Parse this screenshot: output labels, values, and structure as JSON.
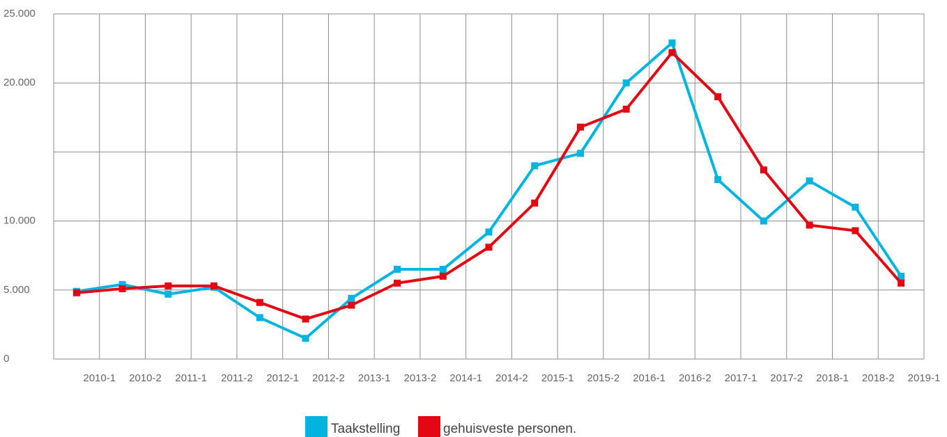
{
  "chart_data": {
    "type": "line",
    "categories": [
      "2010-1",
      "2010-2",
      "2011-1",
      "2011-2",
      "2012-1",
      "2012-2",
      "2013-1",
      "2013-2",
      "2014-1",
      "2014-2",
      "2015-1",
      "2015-2",
      "2016-1",
      "2016-2",
      "2017-1",
      "2017-2",
      "2018-1",
      "2018-2",
      "2019-1"
    ],
    "series": [
      {
        "name": "Taakstelling",
        "color": "#00b4e0",
        "values": [
          4900,
          5400,
          4700,
          5200,
          3000,
          1500,
          4400,
          6500,
          6500,
          9200,
          14000,
          14900,
          20000,
          22900,
          13000,
          10000,
          12900,
          11000,
          6000
        ]
      },
      {
        "name": "gehuisveste personen.",
        "color": "#e30613",
        "values": [
          4800,
          5100,
          5300,
          5300,
          4100,
          2900,
          3900,
          5500,
          6000,
          8100,
          11300,
          16800,
          18100,
          22200,
          19000,
          13700,
          9700,
          9300,
          5500
        ]
      }
    ],
    "ylim": [
      0,
      25000
    ],
    "yticks": [
      {
        "value": 25000,
        "label": "25.000"
      },
      {
        "value": 20000,
        "label": "20.000"
      },
      {
        "value": 10000,
        "label": "10.000"
      },
      {
        "value": 5000,
        "label": "5.000"
      },
      0
    ],
    "ygrid": [
      0,
      5000,
      10000,
      15000,
      20000,
      25000
    ],
    "grid": true,
    "legend": "bottom"
  }
}
